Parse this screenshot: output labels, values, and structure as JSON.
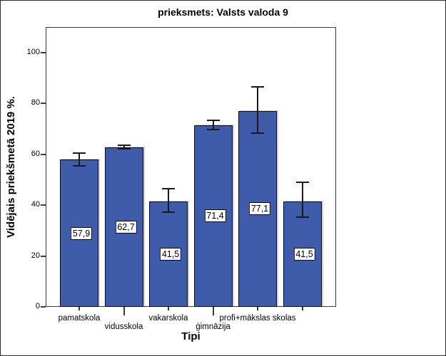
{
  "chart_data": {
    "type": "bar",
    "title": "prieksmets: Valsts valoda 9",
    "xlabel": "Tipi",
    "ylabel": "Vidējais priekšmetā 2019 %.",
    "ylim": [
      0,
      110
    ],
    "yticks": [
      0,
      20,
      40,
      60,
      80,
      100
    ],
    "ytick_labels": [
      "0",
      "20",
      "40",
      "60",
      "80",
      "100"
    ],
    "grid": false,
    "legend": "none",
    "bar_color": "#3e5ca9",
    "bar_border_color": "#0c0c1c",
    "error_bar_color": "#1a1a1a",
    "categories": [
      "pamatskola",
      "vidusskola",
      "vakarskola",
      "ģimnāzija",
      "profi+mākslas skolas",
      ""
    ],
    "values": [
      57.9,
      62.7,
      41.5,
      71.4,
      77.1,
      41.5
    ],
    "value_labels": [
      "57,9",
      "62,7",
      "41,5",
      "71,4",
      "77,1",
      "41,5"
    ],
    "error_upper": [
      60.5,
      63.5,
      46.4,
      73.2,
      86.5,
      48.9
    ],
    "error_lower": [
      55.5,
      62.0,
      37.2,
      69.8,
      68.2,
      35.2
    ],
    "label_rows": [
      1,
      2,
      1,
      2,
      1,
      0
    ]
  }
}
